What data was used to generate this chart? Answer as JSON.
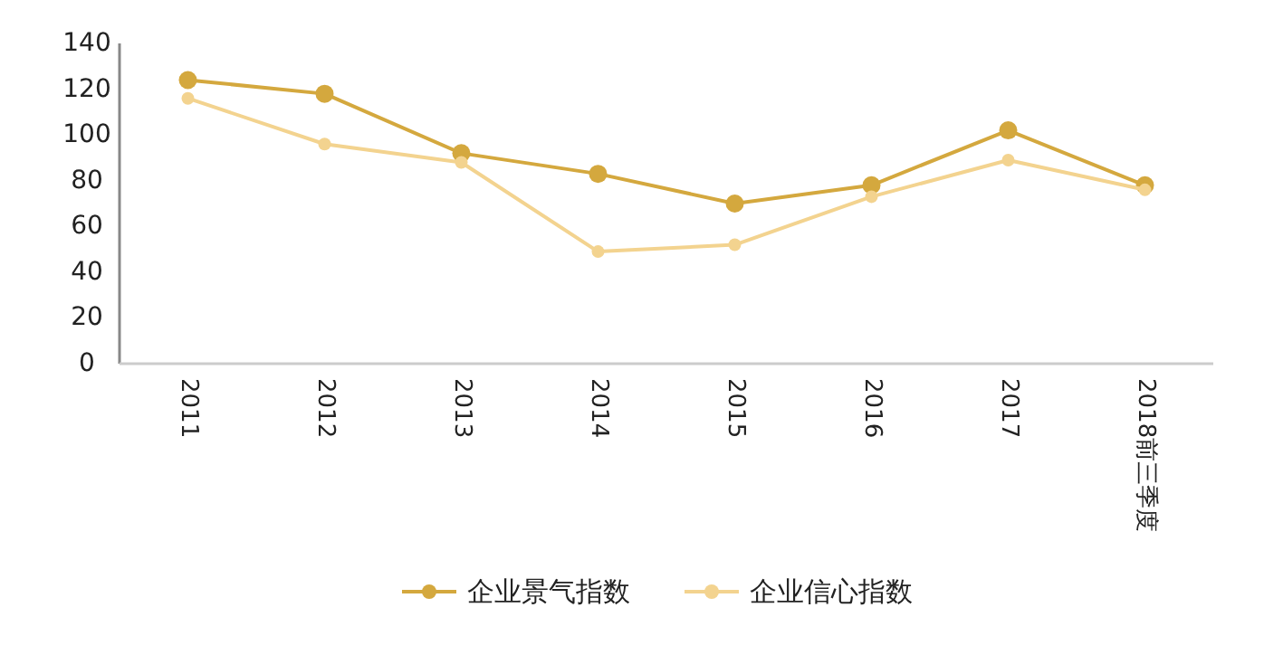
{
  "chart_data": {
    "type": "line",
    "categories": [
      "2011",
      "2012",
      "2013",
      "2014",
      "2015",
      "2016",
      "2017",
      "2018前三季度"
    ],
    "series": [
      {
        "name": "企业景气指数",
        "color": "#d4a83e",
        "values": [
          124,
          118,
          92,
          83,
          70,
          78,
          102,
          78
        ]
      },
      {
        "name": "企业信心指数",
        "color": "#f3d38f",
        "values": [
          116,
          96,
          88,
          49,
          52,
          73,
          89,
          76
        ]
      }
    ],
    "ylim": [
      0,
      140
    ],
    "yticks": [
      0,
      20,
      40,
      60,
      80,
      100,
      120,
      140
    ],
    "grid": false,
    "legend": "bottom",
    "marker": "circle",
    "line_style": "solid"
  }
}
